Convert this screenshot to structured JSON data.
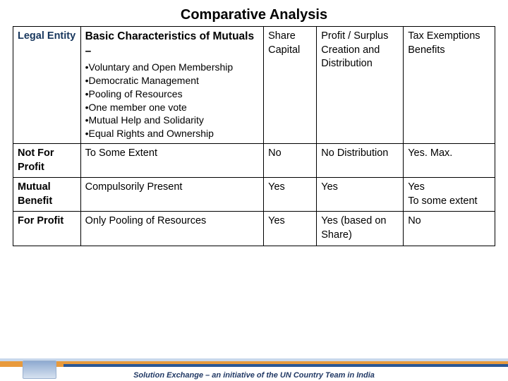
{
  "title": "Comparative Analysis",
  "header": {
    "col1": "Legal Entity",
    "col2_title": "Basic Characteristics of Mutuals –",
    "col2_bullets": "•Voluntary and Open Membership\n•Democratic Management\n•Pooling of Resources\n•One member one vote\n•Mutual Help and Solidarity\n•Equal Rights and Ownership",
    "col3": "Share Capital",
    "col4": "Profit / Surplus Creation and Distribution",
    "col5": "Tax Exemptions Benefits"
  },
  "rows": [
    {
      "c1": "Not For Profit",
      "c2": "To Some Extent",
      "c3": "No",
      "c4": "No Distribution",
      "c5": "Yes. Max."
    },
    {
      "c1": "Mutual Benefit",
      "c2": "Compulsorily Present",
      "c3": "Yes",
      "c4": "Yes",
      "c5": "Yes\nTo some extent"
    },
    {
      "c1": "For Profit",
      "c2": "Only Pooling of Resources",
      "c3": "Yes",
      "c4": "Yes (based on Share)",
      "c5": "No"
    }
  ],
  "footer_text": "Solution Exchange – an initiative of the UN Country Team in India",
  "colors": {
    "header_text": "#17365d",
    "border": "#000000",
    "stripe_light": "#c8d8ec",
    "stripe_orange": "#e89a3c",
    "stripe_blue": "#2a5796",
    "footer_text": "#203864",
    "background": "#ffffff"
  },
  "fonts": {
    "title_size_pt": 20,
    "body_size_pt": 14.5,
    "bullet_size_pt": 14,
    "footer_size_pt": 11
  }
}
